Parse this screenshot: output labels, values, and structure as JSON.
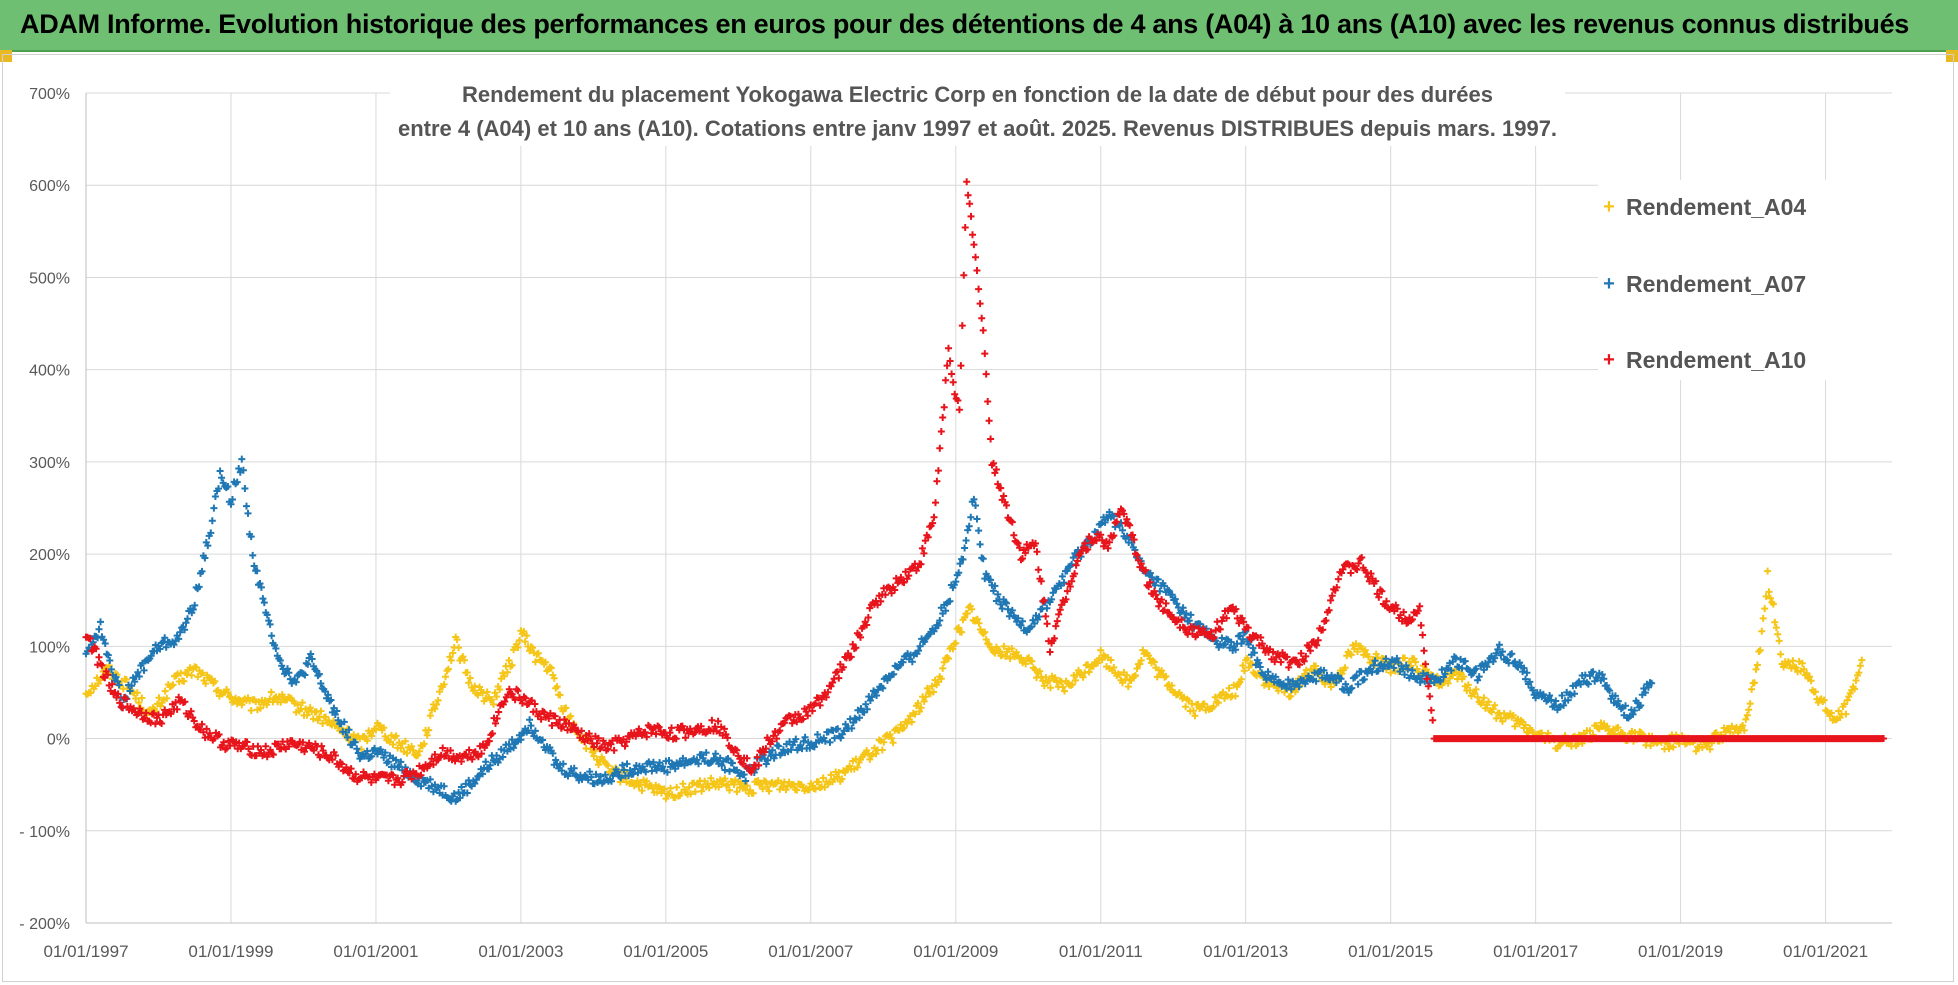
{
  "banner": {
    "title": "ADAM Informe. Evolution historique des performances en euros pour des détentions de 4 ans (A04) à 10 ans (A10) avec les revenus connus distribués"
  },
  "colors": {
    "banner_bg": "#6fbf73",
    "A04": "#f5c518",
    "A07": "#1f77b4",
    "A10": "#e8141c",
    "grid": "#d9d9d9",
    "axis_text": "#595959"
  },
  "chart_data": {
    "type": "scatter",
    "title_lines": [
      "Rendement du placement Yokogawa Electric Corp en fonction de la date de début pour des durées",
      "entre 4 (A04) et 10 ans (A10). Cotations entre janv 1997 et août. 2025. Revenus DISTRIBUES depuis mars. 1997."
    ],
    "xlabel": "",
    "ylabel": "",
    "x_ticks": [
      "01/01/1997",
      "01/01/1999",
      "01/01/2001",
      "01/01/2003",
      "01/01/2005",
      "01/01/2007",
      "01/01/2009",
      "01/01/2011",
      "01/01/2013",
      "01/01/2015",
      "01/01/2017",
      "01/01/2019",
      "01/01/2021"
    ],
    "xlim": [
      "01/01/1997",
      "01/12/2021"
    ],
    "y_ticks": [
      "700%",
      "600%",
      "500%",
      "400%",
      "300%",
      "200%",
      "100%",
      "0%",
      "- 100%",
      "- 200%"
    ],
    "ylim": [
      -200,
      700
    ],
    "grid": true,
    "legend_position": "top-right",
    "series": [
      {
        "name": "Rendement_A04",
        "color": "#f5c518",
        "points": [
          [
            1997.0,
            50
          ],
          [
            1997.3,
            75
          ],
          [
            1997.6,
            55
          ],
          [
            1997.9,
            25
          ],
          [
            1998.2,
            60
          ],
          [
            1998.5,
            75
          ],
          [
            1998.8,
            55
          ],
          [
            1999.0,
            45
          ],
          [
            1999.3,
            35
          ],
          [
            1999.6,
            45
          ],
          [
            1999.9,
            35
          ],
          [
            2000.2,
            25
          ],
          [
            2000.5,
            10
          ],
          [
            2000.8,
            -5
          ],
          [
            2001.0,
            15
          ],
          [
            2001.3,
            -5
          ],
          [
            2001.6,
            -15
          ],
          [
            2001.9,
            55
          ],
          [
            2002.1,
            105
          ],
          [
            2002.3,
            60
          ],
          [
            2002.6,
            40
          ],
          [
            2002.9,
            90
          ],
          [
            2003.0,
            115
          ],
          [
            2003.2,
            90
          ],
          [
            2003.4,
            75
          ],
          [
            2003.6,
            30
          ],
          [
            2003.9,
            -5
          ],
          [
            2004.2,
            -35
          ],
          [
            2004.5,
            -45
          ],
          [
            2004.8,
            -55
          ],
          [
            2005.0,
            -60
          ],
          [
            2005.3,
            -55
          ],
          [
            2005.6,
            -50
          ],
          [
            2005.9,
            -50
          ],
          [
            2006.1,
            -55
          ],
          [
            2006.4,
            -50
          ],
          [
            2006.7,
            -50
          ],
          [
            2007.0,
            -50
          ],
          [
            2007.3,
            -45
          ],
          [
            2007.6,
            -30
          ],
          [
            2007.9,
            -10
          ],
          [
            2008.2,
            5
          ],
          [
            2008.5,
            35
          ],
          [
            2008.8,
            70
          ],
          [
            2009.0,
            110
          ],
          [
            2009.2,
            140
          ],
          [
            2009.4,
            110
          ],
          [
            2009.6,
            95
          ],
          [
            2009.9,
            90
          ],
          [
            2010.2,
            65
          ],
          [
            2010.5,
            55
          ],
          [
            2010.8,
            75
          ],
          [
            2011.0,
            90
          ],
          [
            2011.2,
            75
          ],
          [
            2011.4,
            60
          ],
          [
            2011.6,
            95
          ],
          [
            2011.8,
            70
          ],
          [
            2012.0,
            55
          ],
          [
            2012.3,
            30
          ],
          [
            2012.6,
            40
          ],
          [
            2012.9,
            55
          ],
          [
            2013.0,
            85
          ],
          [
            2013.3,
            60
          ],
          [
            2013.6,
            50
          ],
          [
            2013.9,
            75
          ],
          [
            2014.2,
            60
          ],
          [
            2014.5,
            100
          ],
          [
            2014.8,
            85
          ],
          [
            2015.0,
            75
          ],
          [
            2015.3,
            85
          ],
          [
            2015.6,
            60
          ],
          [
            2015.9,
            70
          ],
          [
            2016.2,
            45
          ],
          [
            2016.5,
            25
          ],
          [
            2016.8,
            15
          ],
          [
            2017.0,
            5
          ],
          [
            2017.3,
            -5
          ],
          [
            2017.6,
            0
          ],
          [
            2017.9,
            10
          ],
          [
            2018.2,
            5
          ],
          [
            2018.5,
            0
          ],
          [
            2018.8,
            -5
          ],
          [
            2019.0,
            0
          ],
          [
            2019.3,
            -10
          ],
          [
            2019.6,
            5
          ],
          [
            2019.9,
            15
          ],
          [
            2020.1,
            100
          ],
          [
            2020.2,
            175
          ],
          [
            2020.4,
            85
          ],
          [
            2020.7,
            75
          ],
          [
            2020.9,
            45
          ],
          [
            2021.1,
            20
          ],
          [
            2021.3,
            35
          ],
          [
            2021.5,
            85
          ]
        ]
      },
      {
        "name": "Rendement_A07",
        "color": "#1f77b4",
        "points": [
          [
            1997.0,
            95
          ],
          [
            1997.2,
            120
          ],
          [
            1997.5,
            40
          ],
          [
            1997.8,
            80
          ],
          [
            1998.0,
            100
          ],
          [
            1998.3,
            110
          ],
          [
            1998.5,
            150
          ],
          [
            1998.7,
            220
          ],
          [
            1998.85,
            285
          ],
          [
            1999.0,
            260
          ],
          [
            1999.15,
            300
          ],
          [
            1999.3,
            200
          ],
          [
            1999.5,
            130
          ],
          [
            1999.7,
            80
          ],
          [
            1999.9,
            60
          ],
          [
            2000.1,
            85
          ],
          [
            2000.3,
            50
          ],
          [
            2000.5,
            20
          ],
          [
            2000.8,
            -20
          ],
          [
            2001.0,
            -15
          ],
          [
            2001.3,
            -30
          ],
          [
            2001.6,
            -45
          ],
          [
            2001.9,
            -55
          ],
          [
            2002.1,
            -65
          ],
          [
            2002.3,
            -50
          ],
          [
            2002.6,
            -25
          ],
          [
            2002.9,
            -5
          ],
          [
            2003.1,
            15
          ],
          [
            2003.3,
            0
          ],
          [
            2003.5,
            -30
          ],
          [
            2003.8,
            -40
          ],
          [
            2004.1,
            -45
          ],
          [
            2004.4,
            -35
          ],
          [
            2004.7,
            -30
          ],
          [
            2005.0,
            -30
          ],
          [
            2005.3,
            -25
          ],
          [
            2005.6,
            -20
          ],
          [
            2005.9,
            -30
          ],
          [
            2006.1,
            -40
          ],
          [
            2006.3,
            -25
          ],
          [
            2006.6,
            -10
          ],
          [
            2006.9,
            -5
          ],
          [
            2007.2,
            0
          ],
          [
            2007.5,
            10
          ],
          [
            2007.8,
            40
          ],
          [
            2008.1,
            70
          ],
          [
            2008.4,
            90
          ],
          [
            2008.7,
            120
          ],
          [
            2008.9,
            150
          ],
          [
            2009.1,
            200
          ],
          [
            2009.25,
            260
          ],
          [
            2009.4,
            180
          ],
          [
            2009.6,
            150
          ],
          [
            2009.8,
            130
          ],
          [
            2010.0,
            120
          ],
          [
            2010.3,
            150
          ],
          [
            2010.6,
            190
          ],
          [
            2010.9,
            220
          ],
          [
            2011.1,
            240
          ],
          [
            2011.3,
            230
          ],
          [
            2011.6,
            180
          ],
          [
            2011.9,
            160
          ],
          [
            2012.2,
            130
          ],
          [
            2012.5,
            110
          ],
          [
            2012.8,
            100
          ],
          [
            2013.0,
            110
          ],
          [
            2013.2,
            75
          ],
          [
            2013.5,
            55
          ],
          [
            2013.8,
            65
          ],
          [
            2014.1,
            70
          ],
          [
            2014.4,
            55
          ],
          [
            2014.7,
            75
          ],
          [
            2015.0,
            85
          ],
          [
            2015.3,
            70
          ],
          [
            2015.6,
            60
          ],
          [
            2015.9,
            85
          ],
          [
            2016.2,
            70
          ],
          [
            2016.5,
            95
          ],
          [
            2016.8,
            80
          ],
          [
            2017.0,
            50
          ],
          [
            2017.3,
            35
          ],
          [
            2017.6,
            60
          ],
          [
            2017.9,
            70
          ],
          [
            2018.1,
            40
          ],
          [
            2018.3,
            25
          ],
          [
            2018.6,
            60
          ]
        ]
      },
      {
        "name": "Rendement_A10",
        "color": "#e8141c",
        "points": [
          [
            1997.0,
            115
          ],
          [
            1997.2,
            80
          ],
          [
            1997.4,
            45
          ],
          [
            1997.7,
            30
          ],
          [
            1998.0,
            20
          ],
          [
            1998.3,
            40
          ],
          [
            1998.6,
            10
          ],
          [
            1998.9,
            -5
          ],
          [
            1999.2,
            -10
          ],
          [
            1999.5,
            -15
          ],
          [
            1999.8,
            -5
          ],
          [
            2000.1,
            -10
          ],
          [
            2000.4,
            -20
          ],
          [
            2000.7,
            -40
          ],
          [
            2001.0,
            -45
          ],
          [
            2001.3,
            -45
          ],
          [
            2001.6,
            -35
          ],
          [
            2001.9,
            -15
          ],
          [
            2002.2,
            -20
          ],
          [
            2002.5,
            -10
          ],
          [
            2002.8,
            50
          ],
          [
            2003.0,
            45
          ],
          [
            2003.3,
            25
          ],
          [
            2003.6,
            15
          ],
          [
            2003.9,
            0
          ],
          [
            2004.2,
            -10
          ],
          [
            2004.5,
            0
          ],
          [
            2004.8,
            10
          ],
          [
            2005.1,
            5
          ],
          [
            2005.4,
            10
          ],
          [
            2005.7,
            15
          ],
          [
            2006.0,
            -15
          ],
          [
            2006.2,
            -35
          ],
          [
            2006.4,
            -5
          ],
          [
            2006.7,
            20
          ],
          [
            2007.0,
            30
          ],
          [
            2007.3,
            60
          ],
          [
            2007.6,
            100
          ],
          [
            2007.9,
            150
          ],
          [
            2008.2,
            170
          ],
          [
            2008.5,
            190
          ],
          [
            2008.7,
            240
          ],
          [
            2008.9,
            420
          ],
          [
            2009.05,
            350
          ],
          [
            2009.15,
            600
          ],
          [
            2009.25,
            540
          ],
          [
            2009.4,
            420
          ],
          [
            2009.5,
            300
          ],
          [
            2009.7,
            250
          ],
          [
            2009.9,
            200
          ],
          [
            2010.1,
            210
          ],
          [
            2010.3,
            100
          ],
          [
            2010.5,
            150
          ],
          [
            2010.7,
            200
          ],
          [
            2010.9,
            220
          ],
          [
            2011.1,
            210
          ],
          [
            2011.3,
            250
          ],
          [
            2011.5,
            200
          ],
          [
            2011.7,
            160
          ],
          [
            2011.9,
            140
          ],
          [
            2012.2,
            120
          ],
          [
            2012.5,
            110
          ],
          [
            2012.8,
            140
          ],
          [
            2013.1,
            110
          ],
          [
            2013.4,
            90
          ],
          [
            2013.7,
            80
          ],
          [
            2014.0,
            110
          ],
          [
            2014.3,
            180
          ],
          [
            2014.6,
            190
          ],
          [
            2014.9,
            150
          ],
          [
            2015.2,
            130
          ],
          [
            2015.4,
            140
          ],
          [
            2015.6,
            0
          ],
          [
            2016.0,
            0
          ],
          [
            2016.5,
            0
          ],
          [
            2017.0,
            0
          ],
          [
            2017.5,
            0
          ],
          [
            2018.0,
            0
          ],
          [
            2018.5,
            0
          ],
          [
            2019.0,
            0
          ],
          [
            2019.5,
            0
          ],
          [
            2020.0,
            0
          ],
          [
            2020.5,
            0
          ],
          [
            2021.0,
            0
          ],
          [
            2021.5,
            0
          ],
          [
            2021.8,
            0
          ]
        ]
      }
    ]
  }
}
